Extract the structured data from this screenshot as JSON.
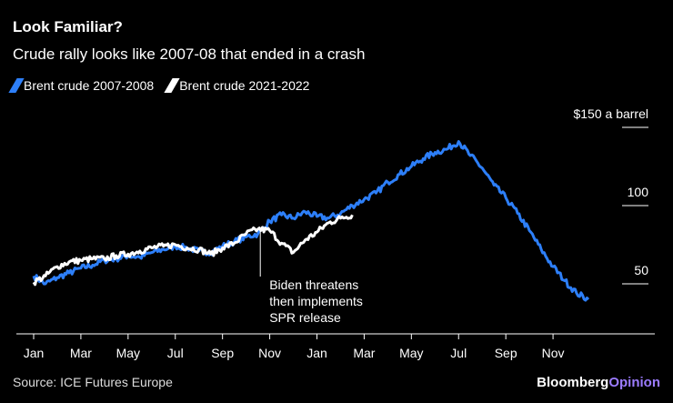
{
  "header": {
    "title": "Look Familiar?",
    "subtitle": "Crude rally looks like 2007-08 that ended in a crash"
  },
  "footer": {
    "source": "Source: ICE Futures Europe",
    "brand_main": "Bloomberg",
    "brand_accent": "Opinion"
  },
  "chart_data": {
    "type": "line",
    "x_unit": "month",
    "x_ticks": [
      "Jan",
      "Mar",
      "May",
      "Jul",
      "Sep",
      "Nov",
      "Jan",
      "Mar",
      "May",
      "Jul",
      "Sep",
      "Nov"
    ],
    "x_tick_positions": [
      0,
      2,
      4,
      6,
      8,
      10,
      12,
      14,
      16,
      18,
      20,
      22
    ],
    "ylim": [
      25,
      150
    ],
    "y_ticks": [
      {
        "value": 50,
        "label": "50"
      },
      {
        "value": 100,
        "label": "100"
      },
      {
        "value": 150,
        "label": "$150 a barrel"
      }
    ],
    "legend_placement": "top-left",
    "series": [
      {
        "name": "Brent crude 2007-2008",
        "color": "#2d7ff9",
        "x": [
          0,
          0.5,
          1,
          1.5,
          2,
          2.5,
          3,
          3.5,
          4,
          4.5,
          5,
          5.5,
          6,
          6.5,
          7,
          7.5,
          8,
          8.5,
          9,
          9.5,
          10,
          10.5,
          11,
          11.5,
          12,
          12.5,
          13,
          13.5,
          14,
          14.5,
          15,
          15.5,
          16,
          16.5,
          17,
          17.5,
          18,
          18.5,
          19,
          19.5,
          20,
          20.5,
          21,
          21.5,
          22,
          22.5,
          23,
          23.5
        ],
        "y": [
          55,
          50,
          54,
          57,
          60,
          62,
          65,
          66,
          68,
          67,
          70,
          72,
          74,
          73,
          71,
          70,
          74,
          77,
          80,
          82,
          90,
          94,
          92,
          96,
          93,
          92,
          95,
          100,
          104,
          108,
          115,
          120,
          125,
          130,
          134,
          136,
          141,
          132,
          124,
          113,
          105,
          95,
          84,
          72,
          61,
          52,
          44,
          40
        ]
      },
      {
        "name": "Brent crude 2021-2022",
        "color": "#ffffff",
        "x": [
          0,
          0.5,
          1,
          1.5,
          2,
          2.5,
          3,
          3.5,
          4,
          4.5,
          5,
          5.5,
          6,
          6.5,
          7,
          7.5,
          8,
          8.5,
          9,
          9.5,
          10,
          10.5,
          11,
          11.5,
          12,
          12.5,
          13,
          13.5
        ],
        "y": [
          51,
          55,
          61,
          64,
          65,
          66,
          66,
          68,
          69,
          71,
          73,
          74,
          75,
          73,
          72,
          69,
          73,
          76,
          82,
          85,
          84,
          76,
          70,
          78,
          83,
          89,
          92,
          94
        ]
      }
    ],
    "annotation": {
      "x": 9.6,
      "y": 85,
      "text_lines": [
        "Biden threatens",
        "then implements",
        "SPR release"
      ]
    }
  }
}
